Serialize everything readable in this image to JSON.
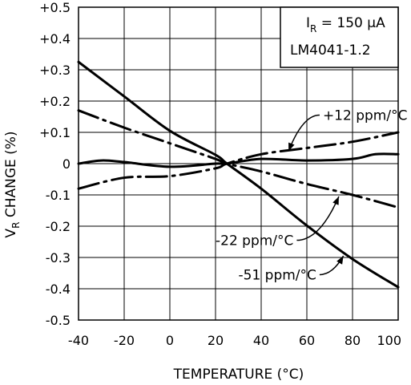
{
  "chart_data": {
    "type": "line",
    "title": "",
    "xlabel": "TEMPERATURE (°C)",
    "ylabel": "V_R CHANGE (%)",
    "ylabel_main": "V",
    "ylabel_sub": "R",
    "ylabel_rest": " CHANGE (%)",
    "xlim": [
      -40,
      100
    ],
    "ylim": [
      -0.5,
      0.5
    ],
    "grid": true,
    "x_ticks": [
      -40,
      -20,
      0,
      20,
      40,
      60,
      80,
      100
    ],
    "x_tick_labels": [
      "-40",
      "-20",
      "0",
      "20",
      "40",
      "60",
      "80",
      "100"
    ],
    "y_ticks": [
      0.5,
      0.4,
      0.3,
      0.2,
      0.1,
      0,
      -0.1,
      -0.2,
      -0.3,
      -0.4,
      -0.5
    ],
    "y_tick_labels": [
      "+0.5",
      "+0.4",
      "+0.3",
      "+0.2",
      "+0.1",
      "0",
      "-0.1",
      "-0.2",
      "-0.3",
      "-0.4",
      "-0.5"
    ],
    "series": [
      {
        "style": "solid",
        "x": [
          -40,
          -20,
          0,
          20,
          25,
          40,
          60,
          80,
          100
        ],
        "y": [
          0.325,
          0.215,
          0.105,
          0.028,
          0.0,
          -0.08,
          -0.198,
          -0.305,
          -0.395
        ]
      },
      {
        "style": "dash-dot",
        "x": [
          -40,
          -20,
          0,
          20,
          25,
          40,
          60,
          80,
          100
        ],
        "y": [
          0.17,
          0.115,
          0.065,
          0.015,
          0.0,
          -0.025,
          -0.065,
          -0.1,
          -0.14
        ]
      },
      {
        "style": "dash-dot",
        "x": [
          -40,
          -20,
          0,
          20,
          25,
          40,
          60,
          80,
          100
        ],
        "y": [
          -0.08,
          -0.045,
          -0.04,
          -0.015,
          0.0,
          0.03,
          0.05,
          0.07,
          0.1
        ]
      },
      {
        "style": "solid",
        "x": [
          -40,
          -30,
          -20,
          0,
          20,
          25,
          40,
          60,
          80,
          90,
          100
        ],
        "y": [
          0.0,
          0.01,
          0.005,
          -0.01,
          0.0,
          0.0,
          0.015,
          0.01,
          0.015,
          0.03,
          0.03
        ]
      }
    ],
    "annotations": {
      "box": {
        "line1_prefix": "I",
        "line1_sub": "R",
        "line1_rest": " = 150 μA",
        "line2": "LM4041-1.2"
      },
      "labels": [
        {
          "text": "+12 ppm/°C",
          "x": 67,
          "y": 0.155,
          "arrow_to_x": 52,
          "arrow_to_y": 0.04
        },
        {
          "text": "-22 ppm/°C",
          "x": 20,
          "y": -0.245,
          "arrow_to_x": 74,
          "arrow_to_y": -0.105
        },
        {
          "text": "-51 ppm/°C",
          "x": 30,
          "y": -0.355,
          "arrow_to_x": 76,
          "arrow_to_y": -0.295
        }
      ]
    }
  }
}
